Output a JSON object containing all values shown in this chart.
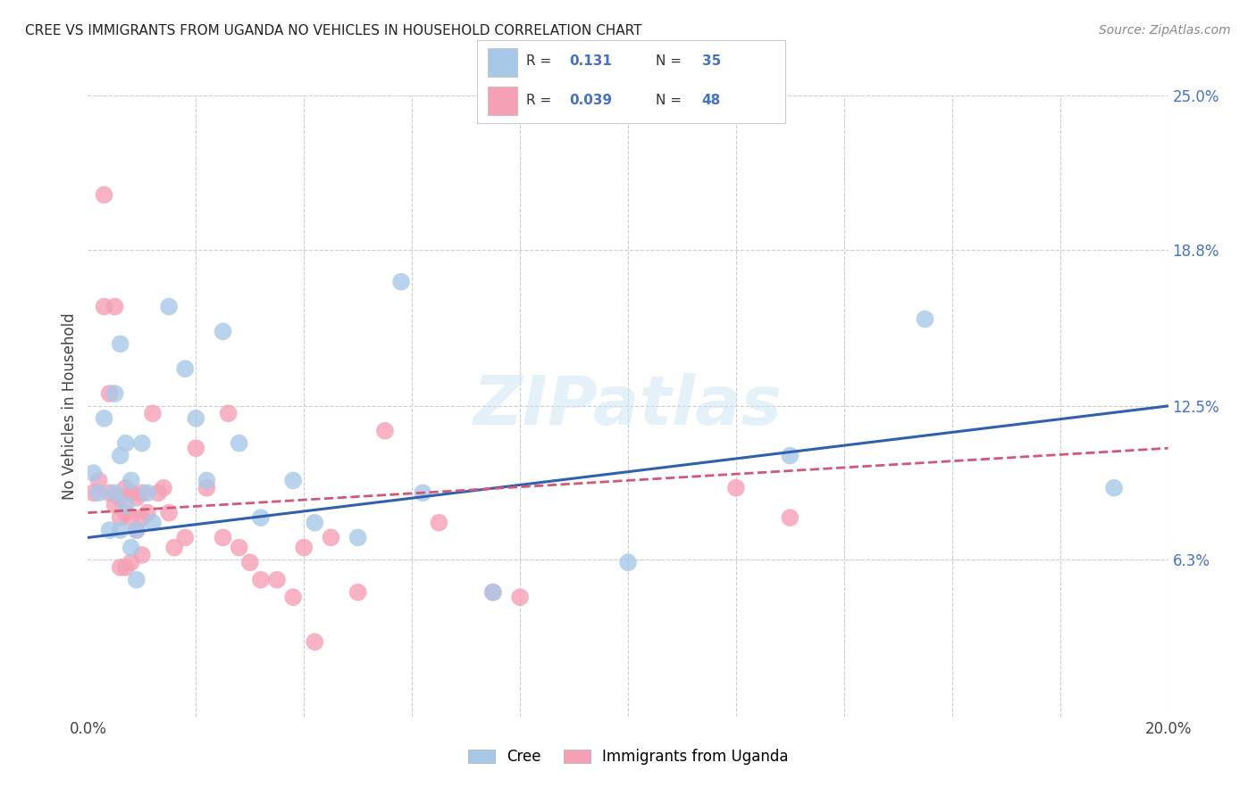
{
  "title": "CREE VS IMMIGRANTS FROM UGANDA NO VEHICLES IN HOUSEHOLD CORRELATION CHART",
  "source": "Source: ZipAtlas.com",
  "ylabel": "No Vehicles in Household",
  "xlim": [
    0.0,
    0.2
  ],
  "ylim": [
    0.0,
    0.25
  ],
  "ytick_right": [
    0.0,
    0.063,
    0.125,
    0.188,
    0.25
  ],
  "ytick_right_labels": [
    "",
    "6.3%",
    "12.5%",
    "18.8%",
    "25.0%"
  ],
  "cree_R": 0.131,
  "cree_N": 35,
  "uganda_R": 0.039,
  "uganda_N": 48,
  "cree_color": "#a8c8e8",
  "uganda_color": "#f5a0b5",
  "cree_line_color": "#3060b0",
  "uganda_line_color": "#d05878",
  "legend_label_cree": "Cree",
  "legend_label_uganda": "Immigrants from Uganda",
  "watermark": "ZIPatlas",
  "cree_x": [
    0.001,
    0.002,
    0.003,
    0.004,
    0.005,
    0.005,
    0.006,
    0.006,
    0.006,
    0.007,
    0.007,
    0.008,
    0.008,
    0.009,
    0.009,
    0.01,
    0.011,
    0.012,
    0.015,
    0.018,
    0.02,
    0.022,
    0.025,
    0.028,
    0.032,
    0.038,
    0.042,
    0.05,
    0.058,
    0.062,
    0.075,
    0.1,
    0.13,
    0.155,
    0.19
  ],
  "cree_y": [
    0.098,
    0.09,
    0.12,
    0.075,
    0.13,
    0.09,
    0.15,
    0.105,
    0.075,
    0.11,
    0.085,
    0.095,
    0.068,
    0.075,
    0.055,
    0.11,
    0.09,
    0.078,
    0.165,
    0.14,
    0.12,
    0.095,
    0.155,
    0.11,
    0.08,
    0.095,
    0.078,
    0.072,
    0.175,
    0.09,
    0.05,
    0.062,
    0.105,
    0.16,
    0.092
  ],
  "uganda_x": [
    0.001,
    0.002,
    0.003,
    0.003,
    0.004,
    0.004,
    0.005,
    0.005,
    0.006,
    0.006,
    0.006,
    0.007,
    0.007,
    0.007,
    0.008,
    0.008,
    0.008,
    0.009,
    0.009,
    0.01,
    0.01,
    0.01,
    0.011,
    0.012,
    0.013,
    0.014,
    0.015,
    0.016,
    0.018,
    0.02,
    0.022,
    0.025,
    0.026,
    0.028,
    0.03,
    0.032,
    0.035,
    0.038,
    0.04,
    0.042,
    0.045,
    0.05,
    0.055,
    0.065,
    0.075,
    0.08,
    0.12,
    0.13
  ],
  "uganda_y": [
    0.09,
    0.095,
    0.21,
    0.165,
    0.13,
    0.09,
    0.085,
    0.165,
    0.088,
    0.08,
    0.06,
    0.092,
    0.082,
    0.06,
    0.09,
    0.08,
    0.062,
    0.088,
    0.075,
    0.09,
    0.08,
    0.065,
    0.082,
    0.122,
    0.09,
    0.092,
    0.082,
    0.068,
    0.072,
    0.108,
    0.092,
    0.072,
    0.122,
    0.068,
    0.062,
    0.055,
    0.055,
    0.048,
    0.068,
    0.03,
    0.072,
    0.05,
    0.115,
    0.078,
    0.05,
    0.048,
    0.092,
    0.08
  ],
  "cree_line_x": [
    0.0,
    0.2
  ],
  "cree_line_y": [
    0.072,
    0.125
  ],
  "uganda_line_x": [
    0.0,
    0.2
  ],
  "uganda_line_y": [
    0.082,
    0.108
  ]
}
